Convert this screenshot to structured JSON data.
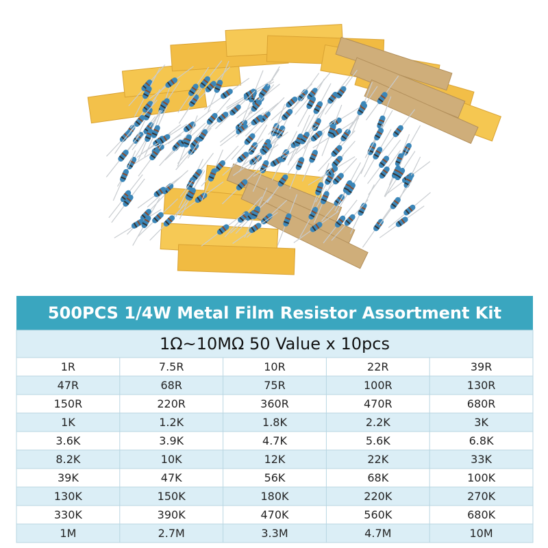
{
  "table": {
    "title": "500PCS 1/4W Metal Film Resistor Assortment Kit",
    "subtitle": "1Ω~10MΩ 50 Value x 10pcs",
    "rows": [
      [
        "1R",
        "7.5R",
        "10R",
        "22R",
        "39R"
      ],
      [
        "47R",
        "68R",
        "75R",
        "100R",
        "130R"
      ],
      [
        "150R",
        "220R",
        "360R",
        "470R",
        "680R"
      ],
      [
        "1K",
        "1.2K",
        "1.8K",
        "2.2K",
        "3K"
      ],
      [
        "3.6K",
        "3.9K",
        "4.7K",
        "5.6K",
        "6.8K"
      ],
      [
        "8.2K",
        "10K",
        "12K",
        "22K",
        "33K"
      ],
      [
        "39K",
        "47K",
        "56K",
        "68K",
        "100K"
      ],
      [
        "130K",
        "150K",
        "180K",
        "220K",
        "270K"
      ],
      [
        "330K",
        "390K",
        "470K",
        "560K",
        "680K"
      ],
      [
        "1M",
        "2.7M",
        "3.3M",
        "4.7M",
        "10M"
      ]
    ]
  }
}
